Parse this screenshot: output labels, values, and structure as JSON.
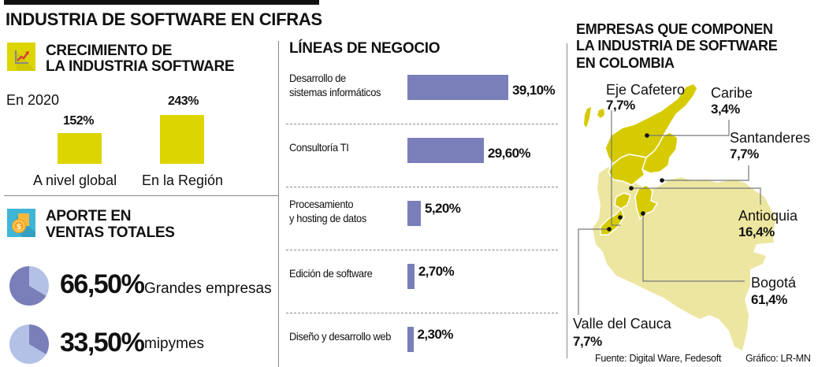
{
  "header": {
    "title": "INDUSTRIA DE SOFTWARE EN CIFRAS"
  },
  "growth": {
    "title_line1": "CRECIMIENTO DE",
    "title_line2": "LA INDUSTRIA SOFTWARE",
    "icon": "growth-chart-icon",
    "year_label": "En 2020"
  },
  "sales": {
    "title_line1": "APORTE EN",
    "title_line2": "VENTAS TOTALES",
    "icon": "coins-icon"
  },
  "business": {
    "title": "LÍNEAS DE NEGOCIO"
  },
  "map": {
    "title_line1": "EMPRESAS QUE COMPONEN",
    "title_line2": "LA INDUSTRIA DE SOFTWARE",
    "title_line3": "EN COLOMBIA",
    "regions": [
      {
        "name": "Eje Cafetero",
        "pct": "7,7%"
      },
      {
        "name": "Caribe",
        "pct": "3,4%"
      },
      {
        "name": "Santanderes",
        "pct": "7,7%"
      },
      {
        "name": "Antioquia",
        "pct": "16,4%"
      },
      {
        "name": "Bogotá",
        "pct": "61,4%"
      },
      {
        "name": "Valle del Cauca",
        "pct": "7,7%"
      }
    ]
  },
  "footer": {
    "source": "Fuente: Digital Ware, Fedesoft",
    "credit": "Gráfico: LR-MN"
  },
  "colors": {
    "yellow": "#DDD500",
    "bar_purple": "#7A7FBA",
    "pie_light": "#B3C1E6",
    "map_light": "#EDE6A0",
    "map_dark": "#D6CB00"
  },
  "chart_data": [
    {
      "type": "bar",
      "title": "CRECIMIENTO DE LA INDUSTRIA SOFTWARE",
      "subtitle": "En 2020",
      "categories": [
        "A nivel global",
        "En la Región"
      ],
      "values": [
        152,
        243
      ],
      "value_labels": [
        "152%",
        "243%"
      ],
      "unit": "%"
    },
    {
      "type": "pie",
      "title": "APORTE EN VENTAS TOTALES",
      "categories": [
        "Grandes empresas",
        "mipymes"
      ],
      "values": [
        66.5,
        33.5
      ],
      "value_labels": [
        "66,50%",
        "33,50%"
      ]
    },
    {
      "type": "bar",
      "orientation": "horizontal",
      "title": "LÍNEAS DE NEGOCIO",
      "categories": [
        "Desarrollo de sistemas informáticos",
        "Consultoría TI",
        "Procesamiento y hosting de datos",
        "Edición de software",
        "Diseño y desarrollo web"
      ],
      "category_lines": [
        [
          "Desarrollo de",
          "sistemas informáticos"
        ],
        [
          "Consultoría TI"
        ],
        [
          "Procesamiento",
          "y hosting de datos"
        ],
        [
          "Edición de software"
        ],
        [
          "Diseño y desarrollo web"
        ]
      ],
      "values": [
        39.1,
        29.6,
        5.2,
        2.7,
        2.3
      ],
      "value_labels": [
        "39,10%",
        "29,60%",
        "5,20%",
        "2,70%",
        "2,30%"
      ]
    },
    {
      "type": "table",
      "title": "EMPRESAS QUE COMPONEN LA INDUSTRIA DE SOFTWARE EN COLOMBIA",
      "categories": [
        "Eje Cafetero",
        "Caribe",
        "Santanderes",
        "Antioquia",
        "Bogotá",
        "Valle del Cauca"
      ],
      "values": [
        7.7,
        3.4,
        7.7,
        16.4,
        61.4,
        7.7
      ]
    }
  ]
}
